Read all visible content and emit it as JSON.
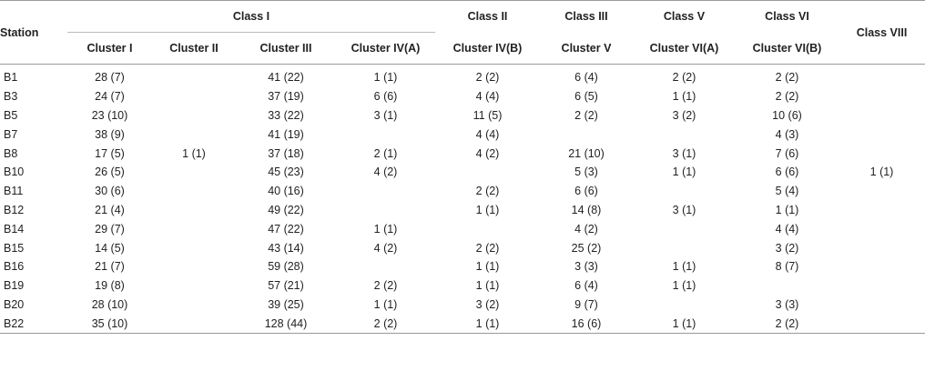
{
  "table": {
    "station_header": "Station",
    "class_headers": [
      {
        "label": "Class I",
        "span": 4
      },
      {
        "label": "Class II",
        "span": 1
      },
      {
        "label": "Class III",
        "span": 1
      },
      {
        "label": "Class V",
        "span": 1
      },
      {
        "label": "Class VI",
        "span": 1
      },
      {
        "label": "Class VIII",
        "span": 1
      }
    ],
    "cluster_headers": [
      "Cluster I",
      "Cluster II",
      "Cluster III",
      "Cluster IV(A)",
      "Cluster IV(B)",
      "Cluster V",
      "Cluster VI(A)",
      "Cluster VI(B)",
      ""
    ],
    "rows": [
      [
        "B1",
        "28 (7)",
        "",
        "41 (22)",
        "1 (1)",
        "2 (2)",
        "6 (4)",
        "2 (2)",
        "2 (2)",
        ""
      ],
      [
        "B3",
        "24 (7)",
        "",
        "37 (19)",
        "6 (6)",
        "4 (4)",
        "6 (5)",
        "1 (1)",
        "2 (2)",
        ""
      ],
      [
        "B5",
        "23 (10)",
        "",
        "33 (22)",
        "3 (1)",
        "11 (5)",
        "2 (2)",
        "3 (2)",
        "10 (6)",
        ""
      ],
      [
        "B7",
        "38 (9)",
        "",
        "41 (19)",
        "",
        "4 (4)",
        "",
        "",
        "4 (3)",
        ""
      ],
      [
        "B8",
        "17 (5)",
        "1 (1)",
        "37 (18)",
        "2 (1)",
        "4 (2)",
        "21 (10)",
        "3 (1)",
        "7 (6)",
        ""
      ],
      [
        "B10",
        "26 (5)",
        "",
        "45 (23)",
        "4 (2)",
        "",
        "5 (3)",
        "1 (1)",
        "6 (6)",
        "1 (1)"
      ],
      [
        "B11",
        "30 (6)",
        "",
        "40 (16)",
        "",
        "2 (2)",
        "6 (6)",
        "",
        "5 (4)",
        ""
      ],
      [
        "B12",
        "21 (4)",
        "",
        "49 (22)",
        "",
        "1 (1)",
        "14 (8)",
        "3 (1)",
        "1 (1)",
        ""
      ],
      [
        "B14",
        "29 (7)",
        "",
        "47 (22)",
        "1 (1)",
        "",
        "4 (2)",
        "",
        "4 (4)",
        ""
      ],
      [
        "B15",
        "14 (5)",
        "",
        "43 (14)",
        "4 (2)",
        "2 (2)",
        "25 (2)",
        "",
        "3 (2)",
        ""
      ],
      [
        "B16",
        "21 (7)",
        "",
        "59 (28)",
        "",
        "1 (1)",
        "3 (3)",
        "1 (1)",
        "8 (7)",
        ""
      ],
      [
        "B19",
        "19 (8)",
        "",
        "57 (21)",
        "2 (2)",
        "1 (1)",
        "6 (4)",
        "1 (1)",
        "",
        ""
      ],
      [
        "B20",
        "28 (10)",
        "",
        "39 (25)",
        "1 (1)",
        "3 (2)",
        "9 (7)",
        "",
        "3 (3)",
        ""
      ],
      [
        "B22",
        "35 (10)",
        "",
        "128 (44)",
        "2 (2)",
        "1 (1)",
        "16 (6)",
        "1 (1)",
        "2 (2)",
        ""
      ]
    ]
  }
}
